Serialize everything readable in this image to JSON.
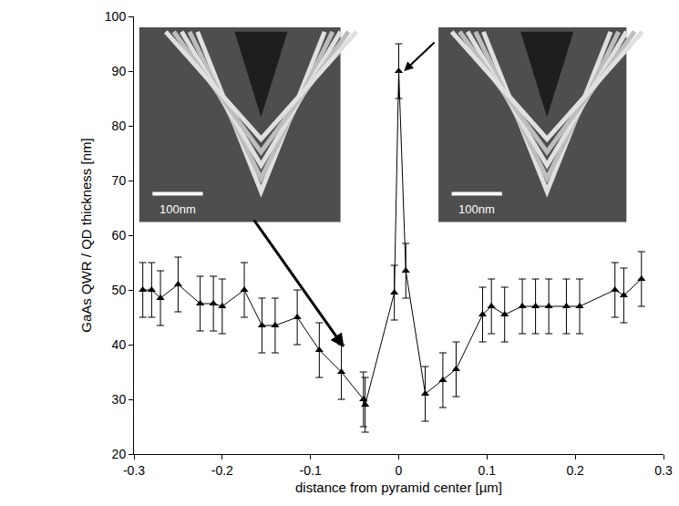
{
  "chart_data": {
    "type": "scatter",
    "xlabel": "distance from pyramid center [µm]",
    "ylabel": "GaAs QWR / QD thickness [nm]",
    "x": [
      -0.29,
      -0.28,
      -0.27,
      -0.25,
      -0.225,
      -0.21,
      -0.2,
      -0.175,
      -0.155,
      -0.14,
      -0.115,
      -0.09,
      -0.065,
      -0.04,
      -0.038,
      -0.005,
      0,
      0.008,
      0.03,
      0.05,
      0.065,
      0.095,
      0.105,
      0.12,
      0.14,
      0.155,
      0.17,
      0.19,
      0.205,
      0.245,
      0.255,
      0.275
    ],
    "values": [
      50,
      50,
      48.5,
      51,
      47.5,
      47.5,
      47,
      50,
      43.5,
      43.5,
      45,
      39,
      35,
      30,
      29,
      49.5,
      90,
      53.5,
      31,
      33.5,
      35.5,
      45.5,
      47,
      45.5,
      47,
      47,
      47,
      47,
      47,
      50,
      49,
      52
    ],
    "errors": [
      5,
      5,
      5,
      5,
      5,
      5,
      5,
      5,
      5,
      5,
      5,
      5,
      5,
      5,
      5,
      5,
      5,
      5,
      5,
      5,
      5,
      5,
      5,
      5,
      5,
      5,
      5,
      5,
      5,
      5,
      5,
      5
    ],
    "color": "#000000",
    "marker": "triangle-up",
    "line_style": "solid",
    "xlim": [
      -0.3,
      0.3
    ],
    "xticks": [
      -0.3,
      -0.2,
      -0.1,
      0,
      0.1,
      0.2,
      0.3
    ],
    "ylim": [
      20,
      100
    ],
    "yticks": [
      20,
      30,
      40,
      50,
      60,
      70,
      80,
      90,
      100
    ],
    "grid": false,
    "insets": [
      {
        "scale_bar": "100nm"
      },
      {
        "scale_bar": "100nm"
      }
    ]
  }
}
